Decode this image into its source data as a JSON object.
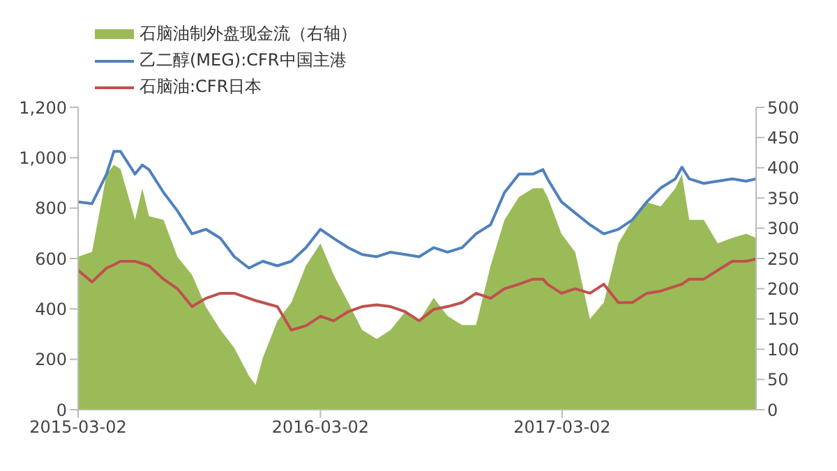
{
  "chart_data": {
    "type": "line",
    "x": [
      "2015-03-02",
      "2015-03-23",
      "2015-04-14",
      "2015-04-25",
      "2015-05-05",
      "2015-05-27",
      "2015-06-07",
      "2015-06-17",
      "2015-07-09",
      "2015-07-30",
      "2015-08-21",
      "2015-09-11",
      "2015-10-03",
      "2015-10-24",
      "2015-11-15",
      "2015-11-25",
      "2015-12-06",
      "2015-12-28",
      "2016-01-18",
      "2016-02-09",
      "2016-03-02",
      "2016-03-22",
      "2016-04-13",
      "2016-05-04",
      "2016-05-26",
      "2016-06-16",
      "2016-07-08",
      "2016-07-29",
      "2016-08-20",
      "2016-09-10",
      "2016-10-02",
      "2016-10-23",
      "2016-11-14",
      "2016-12-05",
      "2016-12-27",
      "2017-01-17",
      "2017-02-01",
      "2017-02-08",
      "2017-03-01",
      "2017-03-22",
      "2017-04-13",
      "2017-05-04",
      "2017-05-26",
      "2017-06-16",
      "2017-07-08",
      "2017-07-29",
      "2017-08-20",
      "2017-08-30",
      "2017-09-10",
      "2017-10-02",
      "2017-10-23",
      "2017-11-14",
      "2017-12-05",
      "2017-12-20"
    ],
    "series": [
      {
        "name": "石脑油制外盘现金流（右轴）",
        "type": "area",
        "axis": "y2",
        "color": "#9bbb59",
        "values": [
          253,
          261,
          389,
          405,
          398,
          314,
          366,
          320,
          314,
          253,
          223,
          170,
          132,
          102,
          56,
          41,
          86,
          147,
          177,
          238,
          275,
          223,
          177,
          132,
          117,
          132,
          162,
          147,
          185,
          155,
          140,
          140,
          238,
          314,
          352,
          366,
          366,
          352,
          291,
          260,
          150,
          177,
          275,
          314,
          343,
          336,
          366,
          389,
          314,
          314,
          275,
          284,
          291,
          284
        ]
      },
      {
        "name": "乙二醇(MEG):CFR中国主港",
        "color": "#4f81bd",
        "values": [
          825,
          818,
          935,
          1025,
          1025,
          935,
          971,
          953,
          862,
          789,
          698,
          716,
          680,
          607,
          562,
          575,
          589,
          571,
          589,
          643,
          716,
          680,
          643,
          616,
          607,
          625,
          616,
          607,
          643,
          625,
          643,
          698,
          734,
          862,
          935,
          935,
          953,
          916,
          825,
          780,
          734,
          698,
          716,
          753,
          825,
          880,
          916,
          962,
          916,
          898,
          907,
          916,
          907,
          916
        ]
      },
      {
        "name": "石脑油:CFR日本",
        "color": "#c0504d",
        "values": [
          553,
          507,
          562,
          575,
          589,
          589,
          580,
          571,
          518,
          480,
          409,
          442,
          462,
          462,
          442,
          433,
          425,
          409,
          316,
          333,
          371,
          353,
          389,
          409,
          416,
          409,
          389,
          353,
          398,
          409,
          425,
          462,
          442,
          480,
          498,
          518,
          518,
          498,
          462,
          480,
          462,
          498,
          425,
          425,
          462,
          471,
          490,
          498,
          518,
          518,
          553,
          589,
          589,
          598
        ]
      }
    ],
    "xlim": [
      "2015-03-02",
      "2017-12-20"
    ],
    "xticks": [
      "2015-03-02",
      "2016-03-02",
      "2017-03-02"
    ],
    "ylim": [
      0,
      1200
    ],
    "yticks": [
      0,
      200,
      400,
      600,
      800,
      {
        "value": 1000,
        "label": "1,000"
      },
      {
        "value": 1200,
        "label": "1,200"
      }
    ],
    "y2lim": [
      0,
      500
    ],
    "y2ticks": [
      0,
      50,
      100,
      150,
      200,
      250,
      300,
      350,
      400,
      450,
      500
    ],
    "legend": "top",
    "marker": "none",
    "line_style": "solid"
  }
}
